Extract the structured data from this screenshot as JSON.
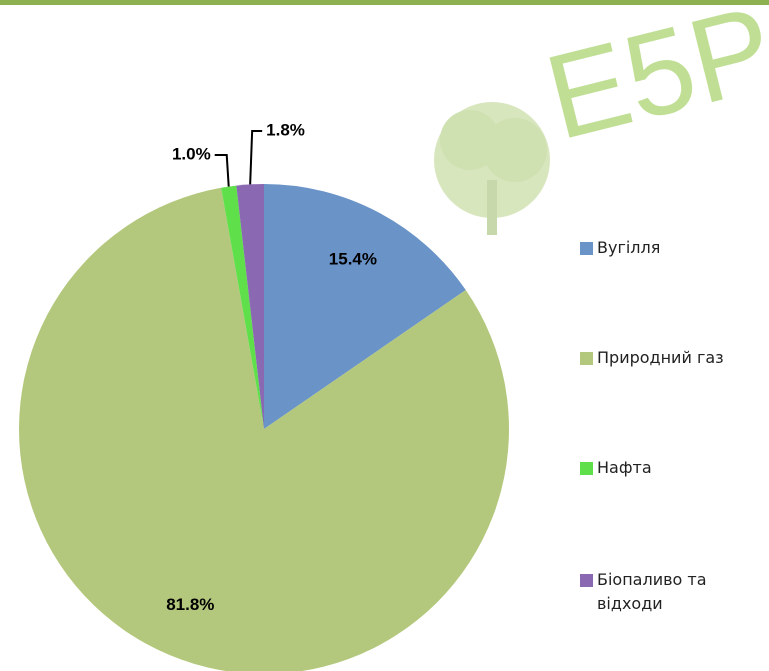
{
  "watermark": "E5P",
  "chart_data": {
    "type": "pie",
    "categories": [
      "Вугілля",
      "Природний газ",
      "Нафта",
      "Біопаливо та відходи"
    ],
    "values": [
      15.4,
      81.8,
      1.0,
      1.8
    ],
    "value_labels": [
      "15.4%",
      "81.8%",
      "1.0%",
      "1.8%"
    ],
    "colors": [
      "#6a93c8",
      "#b3c87c",
      "#5fe04a",
      "#8a68b2"
    ],
    "legend": "right"
  }
}
